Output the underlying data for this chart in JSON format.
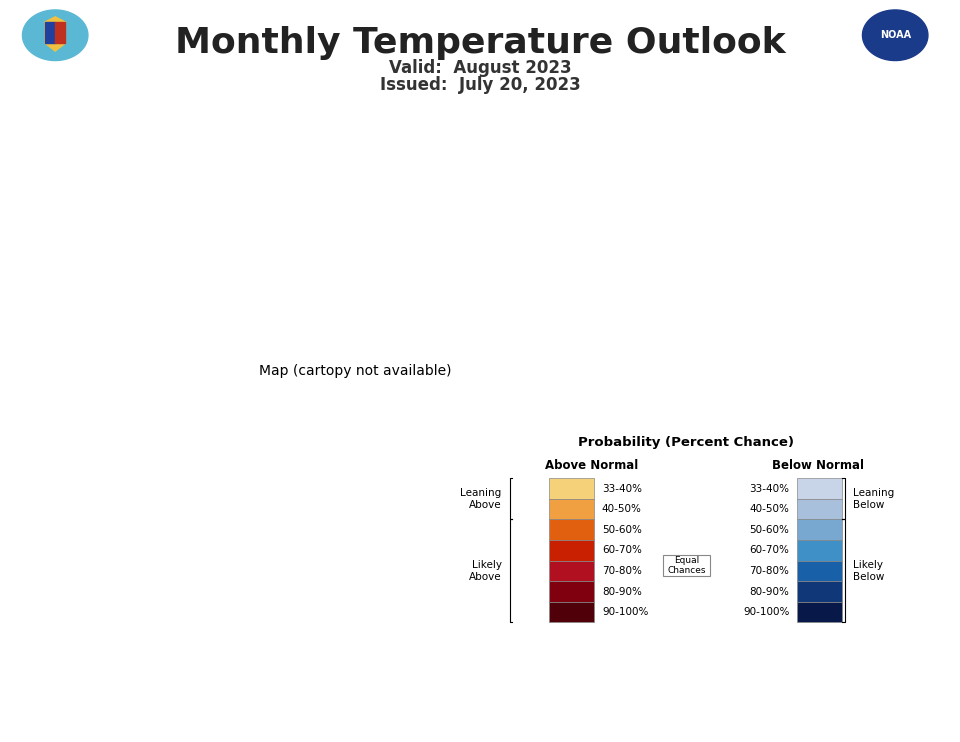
{
  "title": "Monthly Temperature Outlook",
  "valid_text": "Valid:  August 2023",
  "issued_text": "Issued:  July 20, 2023",
  "title_fontsize": 26,
  "subtitle_fontsize": 12,
  "background_color": "#ffffff",
  "above_colors_list": [
    [
      "#F5D27A",
      "33-40%"
    ],
    [
      "#F0A040",
      "40-50%"
    ],
    [
      "#E06010",
      "50-60%"
    ],
    [
      "#C82000",
      "60-70%"
    ],
    [
      "#B01020",
      "70-80%"
    ],
    [
      "#800010",
      "80-90%"
    ],
    [
      "#500008",
      "90-100%"
    ]
  ],
  "below_colors_list": [
    [
      "#C8D4E8",
      "33-40%"
    ],
    [
      "#A8C0DC",
      "40-50%"
    ],
    [
      "#78A8D0",
      "50-60%"
    ],
    [
      "#4090C8",
      "60-70%"
    ],
    [
      "#1860A8",
      "70-80%"
    ],
    [
      "#103878",
      "80-90%"
    ],
    [
      "#081848",
      "90-100%"
    ]
  ],
  "state_colors": {
    "Washington": "#E06010",
    "Oregon": "#E06010",
    "California": "#F0A040",
    "Nevada": "#F0A040",
    "Idaho": "#F0A040",
    "Montana": "#F5D27A",
    "Wyoming": "#F5D27A",
    "Utah": "#F0A040",
    "Arizona": "#E06010",
    "Colorado": "#F0A040",
    "New Mexico": "#E06010",
    "Texas": "#C82000",
    "Oklahoma": "#C82000",
    "Kansas": "#F5D27A",
    "Nebraska": "#ffffff",
    "South Dakota": "#C8D4E8",
    "North Dakota": "#C8D4E8",
    "Minnesota": "#A8C0DC",
    "Iowa": "#C8D4E8",
    "Missouri": "#F5D27A",
    "Wisconsin": "#C8D4E8",
    "Michigan": "#ffffff",
    "Illinois": "#F5D27A",
    "Indiana": "#F5D27A",
    "Ohio": "#F0A040",
    "Kentucky": "#F0A040",
    "Tennessee": "#E06010",
    "Arkansas": "#E06010",
    "Louisiana": "#C82000",
    "Mississippi": "#C82000",
    "Alabama": "#C82000",
    "Georgia": "#E06010",
    "Florida": "#C82000",
    "South Carolina": "#E06010",
    "North Carolina": "#E06010",
    "Virginia": "#F0A040",
    "West Virginia": "#F0A040",
    "Pennsylvania": "#F0A040",
    "New York": "#F0A040",
    "Vermont": "#F0A040",
    "New Hampshire": "#F0A040",
    "Maine": "#E06010",
    "Massachusetts": "#F0A040",
    "Rhode Island": "#F0A040",
    "Connecticut": "#F0A040",
    "New Jersey": "#F0A040",
    "Delaware": "#F0A040",
    "Maryland": "#F0A040",
    "District of Columbia": "#F0A040",
    "Hawaii": "#E06010",
    "Alaska": "#F0A040"
  },
  "alaska_colors": {
    "western_alaska": "#F0A040",
    "eastern_alaska": "#F5D27A"
  },
  "legend_title": "Probability (Percent Chance)",
  "legend_above_label": "Above Normal",
  "legend_below_label": "Below Normal",
  "label_fontsize": 13,
  "label_color_above": "white",
  "label_color_below": "#2060A0",
  "label_color_equal": "#555555"
}
